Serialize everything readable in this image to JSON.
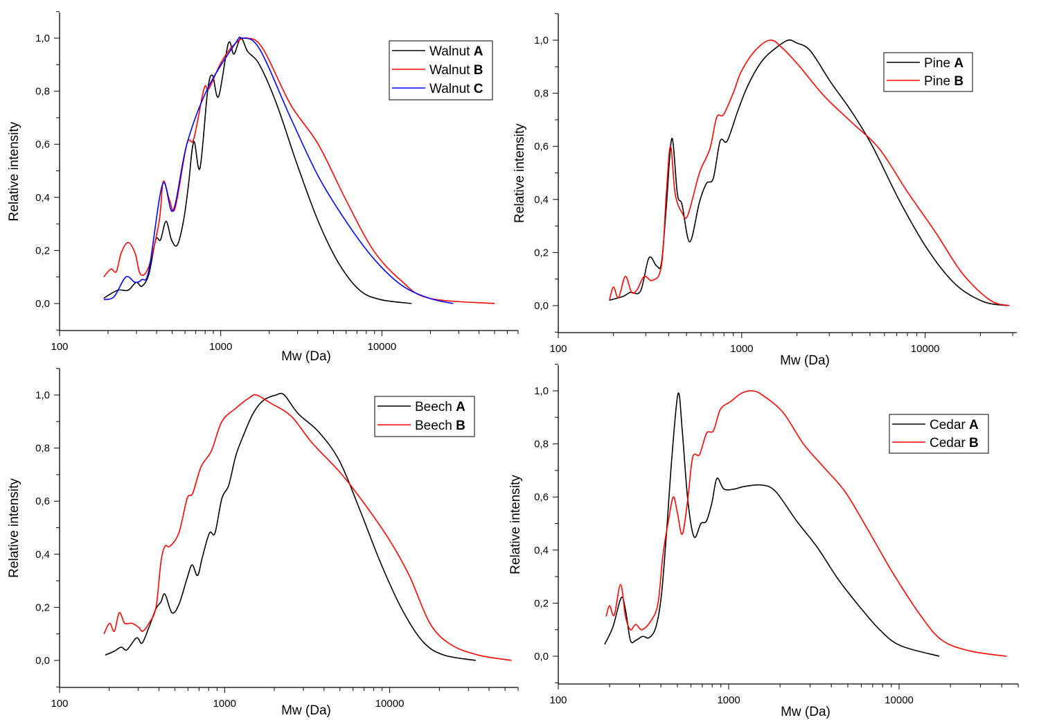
{
  "chart_data": [
    {
      "type": "line",
      "title": "",
      "xlabel": "Mw (Da)",
      "ylabel": "Relative intensity",
      "xscale": "log",
      "xlim": [
        100,
        70000
      ],
      "ylim": [
        -0.1,
        1.1
      ],
      "xticks": [
        100,
        1000,
        10000
      ],
      "xtick_labels": [
        "100",
        "1000",
        "10000"
      ],
      "yticks": [
        0,
        0.2,
        0.4,
        0.6,
        0.8,
        1.0
      ],
      "ytick_labels": [
        "0,0",
        "0,2",
        "0,4",
        "0,6",
        "0,8",
        "1,0"
      ],
      "grid": false,
      "legend_position": "top-right",
      "series": [
        {
          "name": "Walnut",
          "label_suffix": "A",
          "color": "#000000",
          "x": [
            188,
            229,
            266,
            299,
            324,
            358,
            395,
            423,
            458,
            495,
            537,
            587,
            629,
            680,
            743,
            829,
            888,
            970,
            1114,
            1207,
            1332,
            1469,
            1738,
            2228,
            2994,
            4027,
            5418,
            7290,
            9800,
            15300
          ],
          "y": [
            0.02,
            0.05,
            0.05,
            0.08,
            0.065,
            0.11,
            0.24,
            0.24,
            0.31,
            0.24,
            0.22,
            0.31,
            0.44,
            0.61,
            0.51,
            0.8,
            0.86,
            0.78,
            0.98,
            0.94,
            1.0,
            0.95,
            0.9,
            0.75,
            0.52,
            0.31,
            0.15,
            0.05,
            0.015,
            0.0
          ]
        },
        {
          "name": "Walnut",
          "label_suffix": "B",
          "color": "#ff0000",
          "x": [
            188,
            208,
            225,
            241,
            266,
            294,
            318,
            358,
            415,
            440,
            481,
            521,
            616,
            680,
            788,
            845,
            1009,
            1231,
            1469,
            1828,
            2713,
            4027,
            5985,
            8870,
            13180,
            19600,
            50100
          ],
          "y": [
            0.1,
            0.13,
            0.12,
            0.19,
            0.23,
            0.19,
            0.11,
            0.14,
            0.31,
            0.46,
            0.39,
            0.36,
            0.6,
            0.62,
            0.81,
            0.81,
            0.91,
            0.98,
            1.0,
            0.96,
            0.75,
            0.6,
            0.39,
            0.2,
            0.086,
            0.02,
            0.0
          ]
        },
        {
          "name": "Walnut",
          "label_suffix": "C",
          "color": "#0000ff",
          "x": [
            188,
            218,
            258,
            294,
            324,
            358,
            436,
            506,
            616,
            829,
            1231,
            1358,
            1738,
            2713,
            4027,
            5985,
            8870,
            13180,
            19600,
            27700
          ],
          "y": [
            0.015,
            0.026,
            0.1,
            0.08,
            0.09,
            0.125,
            0.45,
            0.35,
            0.6,
            0.81,
            0.98,
            1.0,
            0.96,
            0.7,
            0.48,
            0.31,
            0.17,
            0.07,
            0.02,
            0.0
          ]
        }
      ]
    },
    {
      "type": "line",
      "title": "",
      "xlabel": "Mw (Da)",
      "ylabel": "Relative intensity",
      "xscale": "log",
      "xlim": [
        100,
        31600
      ],
      "ylim": [
        -0.1,
        1.1
      ],
      "xticks": [
        100,
        1000,
        10000
      ],
      "xtick_labels": [
        "100",
        "1000",
        "10000"
      ],
      "yticks": [
        0,
        0.2,
        0.4,
        0.6,
        0.8,
        1.0
      ],
      "ytick_labels": [
        "0,0",
        "0,2",
        "0,4",
        "0,6",
        "0,8",
        "1,0"
      ],
      "grid": false,
      "legend_position": "top-right",
      "series": [
        {
          "name": "Pine",
          "label_suffix": "A",
          "color": "#000000",
          "x": [
            190,
            226,
            247,
            281,
            312,
            343,
            365,
            388,
            416,
            446,
            473,
            521,
            588,
            642,
            700,
            763,
            833,
            948,
            1081,
            1285,
            1530,
            1790,
            1987,
            2364,
            3069,
            3981,
            5165,
            7311,
            10350,
            14650,
            20750,
            28150
          ],
          "y": [
            0.02,
            0.035,
            0.05,
            0.055,
            0.18,
            0.15,
            0.16,
            0.37,
            0.63,
            0.42,
            0.38,
            0.24,
            0.39,
            0.46,
            0.48,
            0.62,
            0.62,
            0.73,
            0.83,
            0.92,
            0.97,
            1.0,
            0.99,
            0.96,
            0.84,
            0.73,
            0.6,
            0.39,
            0.21,
            0.08,
            0.015,
            0.0
          ]
        },
        {
          "name": "Pine",
          "label_suffix": "B",
          "color": "#ff0000",
          "x": [
            190,
            200,
            213,
            232,
            251,
            269,
            294,
            326,
            365,
            388,
            409,
            434,
            473,
            508,
            588,
            670,
            731,
            797,
            909,
            991,
            1180,
            1428,
            1670,
            2075,
            2812,
            3981,
            5636,
            7980,
            11300,
            16000,
            22650,
            28850
          ],
          "y": [
            0.02,
            0.07,
            0.03,
            0.11,
            0.05,
            0.06,
            0.11,
            0.095,
            0.15,
            0.42,
            0.6,
            0.42,
            0.35,
            0.34,
            0.5,
            0.59,
            0.71,
            0.72,
            0.81,
            0.88,
            0.96,
            1.0,
            0.97,
            0.9,
            0.79,
            0.69,
            0.59,
            0.43,
            0.28,
            0.12,
            0.02,
            0.0
          ]
        }
      ]
    },
    {
      "type": "line",
      "title": "",
      "xlabel": "Mw (Da)",
      "ylabel": "Relative intensity",
      "xscale": "log",
      "xlim": [
        100,
        60000
      ],
      "ylim": [
        -0.1,
        1.1
      ],
      "xticks": [
        100,
        1000,
        10000
      ],
      "xtick_labels": [
        "100",
        "1000",
        "10000"
      ],
      "yticks": [
        0,
        0.2,
        0.4,
        0.6,
        0.8,
        1.0
      ],
      "ytick_labels": [
        "0,0",
        "0,2",
        "0,4",
        "0,6",
        "0,8",
        "1,0"
      ],
      "grid": false,
      "legend_position": "top-right",
      "series": [
        {
          "name": "Beech",
          "label_suffix": "A",
          "color": "#000000",
          "x": [
            189,
            215,
            236,
            256,
            293,
            316,
            348,
            384,
            411,
            435,
            479,
            528,
            593,
            635,
            686,
            734,
            809,
            874,
            962,
            1059,
            1167,
            1285,
            1486,
            1718,
            2046,
            2298,
            2787,
            3724,
            4977,
            6663,
            8913,
            11920,
            15930,
            21300,
            33200
          ],
          "y": [
            0.02,
            0.035,
            0.05,
            0.04,
            0.085,
            0.065,
            0.125,
            0.195,
            0.22,
            0.25,
            0.18,
            0.21,
            0.31,
            0.36,
            0.32,
            0.39,
            0.48,
            0.48,
            0.61,
            0.66,
            0.77,
            0.84,
            0.93,
            0.98,
            1.0,
            1.0,
            0.93,
            0.86,
            0.75,
            0.56,
            0.36,
            0.19,
            0.07,
            0.02,
            0.0
          ]
        },
        {
          "name": "Beech",
          "label_suffix": "B",
          "color": "#ff0000",
          "x": [
            186,
            201,
            215,
            230,
            248,
            274,
            301,
            319,
            348,
            384,
            411,
            435,
            466,
            528,
            593,
            641,
            720,
            832,
            962,
            1167,
            1416,
            1560,
            1892,
            2531,
            3381,
            4977,
            6663,
            9820,
            13130,
            17540,
            23440,
            34500,
            54800
          ],
          "y": [
            0.1,
            0.14,
            0.11,
            0.18,
            0.14,
            0.14,
            0.125,
            0.11,
            0.14,
            0.2,
            0.37,
            0.43,
            0.43,
            0.48,
            0.61,
            0.63,
            0.73,
            0.79,
            0.9,
            0.95,
            0.99,
            1.0,
            0.97,
            0.92,
            0.82,
            0.71,
            0.61,
            0.46,
            0.32,
            0.14,
            0.06,
            0.02,
            0.0
          ]
        }
      ]
    },
    {
      "type": "line",
      "title": "",
      "xlabel": "Mw (Da)",
      "ylabel": "Relative intensity",
      "xscale": "log",
      "xlim": [
        100,
        50000
      ],
      "ylim": [
        -0.1,
        1.1
      ],
      "xticks": [
        100,
        1000,
        10000
      ],
      "xtick_labels": [
        "100",
        "1000",
        "10000"
      ],
      "yticks": [
        0,
        0.2,
        0.4,
        0.6,
        0.8,
        1.0
      ],
      "ytick_labels": [
        "0,0",
        "0,2",
        "0,4",
        "0,6",
        "0,8",
        "1,0"
      ],
      "grid": false,
      "legend_position": "top-right",
      "series": [
        {
          "name": "Cedar",
          "label_suffix": "A",
          "color": "#000000",
          "x": [
            187,
            209,
            234,
            248,
            265,
            285,
            313,
            341,
            374,
            403,
            431,
            464,
            505,
            534,
            575,
            626,
            687,
            741,
            798,
            853,
            937,
            1079,
            1240,
            1567,
            1889,
            2502,
            3314,
            4389,
            5809,
            7690,
            10190,
            17220
          ],
          "y": [
            0.045,
            0.11,
            0.22,
            0.175,
            0.06,
            0.06,
            0.075,
            0.07,
            0.11,
            0.23,
            0.46,
            0.75,
            0.99,
            0.85,
            0.59,
            0.45,
            0.5,
            0.51,
            0.58,
            0.67,
            0.63,
            0.63,
            0.64,
            0.645,
            0.62,
            0.51,
            0.41,
            0.29,
            0.19,
            0.1,
            0.04,
            0.0
          ]
        },
        {
          "name": "Cedar",
          "label_suffix": "B",
          "color": "#ff0000",
          "x": [
            191,
            200,
            213,
            232,
            248,
            265,
            285,
            310,
            351,
            385,
            411,
            443,
            473,
            500,
            534,
            575,
            615,
            675,
            741,
            814,
            894,
            1029,
            1183,
            1361,
            1567,
            2075,
            2748,
            3640,
            4819,
            6380,
            9270,
            13490,
            17870,
            25990,
            42650
          ],
          "y": [
            0.15,
            0.19,
            0.155,
            0.27,
            0.15,
            0.1,
            0.12,
            0.1,
            0.135,
            0.2,
            0.38,
            0.51,
            0.6,
            0.54,
            0.46,
            0.59,
            0.75,
            0.76,
            0.84,
            0.85,
            0.93,
            0.96,
            0.99,
            1.0,
            0.985,
            0.92,
            0.8,
            0.71,
            0.62,
            0.49,
            0.31,
            0.15,
            0.06,
            0.02,
            0.0
          ]
        }
      ]
    }
  ]
}
